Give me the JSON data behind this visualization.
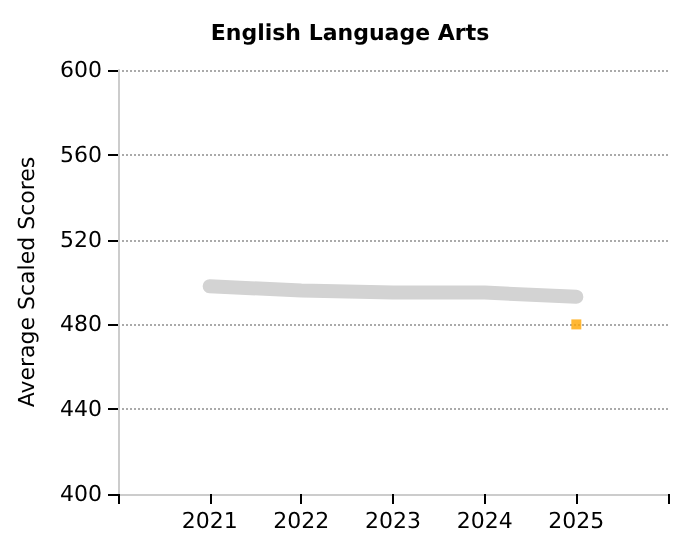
{
  "chart_data": {
    "type": "line",
    "title": "English Language Arts",
    "ylabel": "Average Scaled Scores",
    "x": [
      2021,
      2022,
      2023,
      2024,
      2025
    ],
    "series": [
      {
        "color": "#d3d3d3",
        "marker": "none",
        "values": [
          498,
          496,
          495,
          495,
          493
        ]
      },
      {
        "type": "scatter",
        "color": "#ffa500",
        "marker": "square",
        "x": [
          2025
        ],
        "values": [
          480
        ]
      }
    ],
    "xlim": [
      2020,
      2026
    ],
    "xticks": [
      {
        "value": 2020,
        "label": null
      },
      2021,
      2022,
      2023,
      2024,
      2025,
      {
        "value": 2026,
        "label": null
      }
    ],
    "ylim": [
      400,
      600
    ],
    "yticks": [
      400,
      440,
      480,
      520,
      560,
      600
    ],
    "grid": "y"
  }
}
